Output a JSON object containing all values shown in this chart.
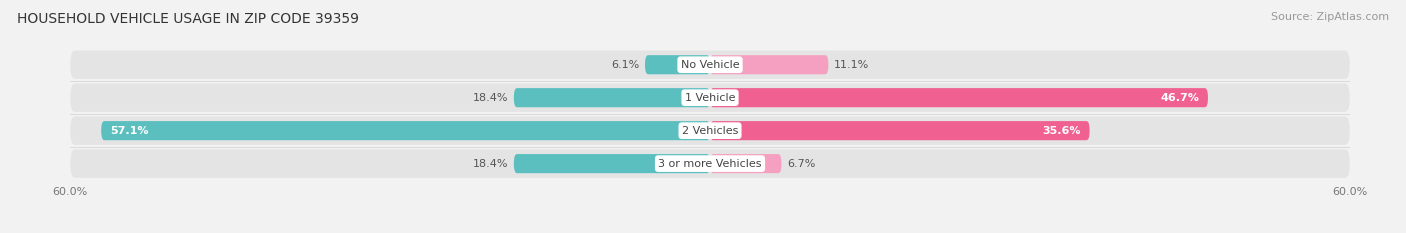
{
  "title": "HOUSEHOLD VEHICLE USAGE IN ZIP CODE 39359",
  "source": "Source: ZipAtlas.com",
  "categories": [
    "No Vehicle",
    "1 Vehicle",
    "2 Vehicles",
    "3 or more Vehicles"
  ],
  "owner_values": [
    6.1,
    18.4,
    57.1,
    18.4
  ],
  "renter_values": [
    11.1,
    46.7,
    35.6,
    6.7
  ],
  "owner_color": "#5bbfbf",
  "renter_color": "#f06090",
  "renter_color_light": "#f5a0c0",
  "x_max": 60.0,
  "bg_color": "#f2f2f2",
  "bar_bg_color": "#e4e4e4",
  "title_fontsize": 10,
  "source_fontsize": 8,
  "value_fontsize": 8,
  "category_fontsize": 8,
  "axis_label_fontsize": 8,
  "bar_height": 0.58
}
